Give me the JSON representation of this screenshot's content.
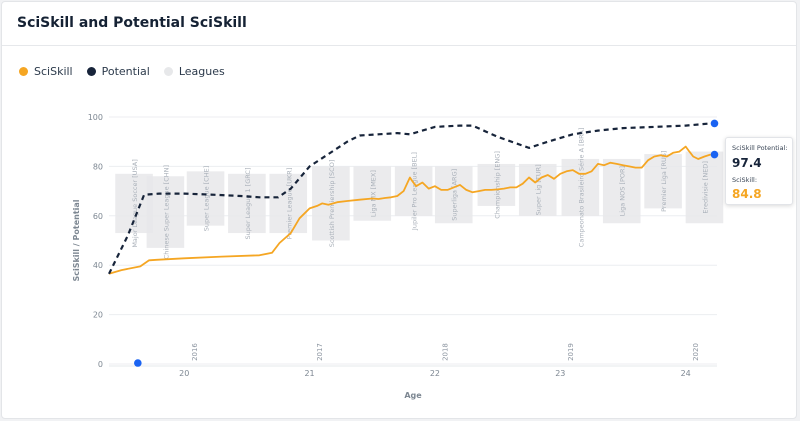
{
  "title": "SciSkill and Potential SciSkill",
  "legend": [
    {
      "label": "SciSkill",
      "color": "#f5a623"
    },
    {
      "label": "Potential",
      "color": "#17243a"
    },
    {
      "label": "Leagues",
      "color": "#e7e8ea"
    }
  ],
  "tooltip": {
    "potential_label": "SciSkill Potential:",
    "potential_value": "97.4",
    "sciskill_label": "SciSkill:",
    "sciskill_value": "84.8"
  },
  "chart_data": {
    "type": "line",
    "title": "SciSkill and Potential SciSkill",
    "xlabel": "Age",
    "ylabel": "SciSkill / Potential",
    "xlim": [
      19.4,
      24.25
    ],
    "ylim": [
      0,
      100
    ],
    "x_ticks": [
      20,
      21,
      22,
      23,
      24
    ],
    "y_ticks": [
      0,
      20,
      40,
      60,
      80,
      100
    ],
    "year_ticks": [
      {
        "label": "2016",
        "x": 20.1
      },
      {
        "label": "2017",
        "x": 21.1
      },
      {
        "label": "2018",
        "x": 22.1
      },
      {
        "label": "2019",
        "x": 23.1
      },
      {
        "label": "2020",
        "x": 24.1
      }
    ],
    "leagues": [
      {
        "name": "Major League Soccer [USA]",
        "x0": 19.45,
        "x1": 19.75,
        "y0": 53,
        "y1": 77
      },
      {
        "name": "Chinese Super League [CHN]",
        "x0": 19.7,
        "x1": 20.0,
        "y0": 47,
        "y1": 76
      },
      {
        "name": "Super League [CHE]",
        "x0": 20.02,
        "x1": 20.32,
        "y0": 56,
        "y1": 78
      },
      {
        "name": "Super League 1 [GRC]",
        "x0": 20.35,
        "x1": 20.65,
        "y0": 53,
        "y1": 77
      },
      {
        "name": "Premier League [UKR]",
        "x0": 20.68,
        "x1": 20.98,
        "y0": 53,
        "y1": 77
      },
      {
        "name": "Scottish Premiership [SCO]",
        "x0": 21.02,
        "x1": 21.32,
        "y0": 50,
        "y1": 80
      },
      {
        "name": "Liga MX [MEX]",
        "x0": 21.35,
        "x1": 21.65,
        "y0": 58,
        "y1": 80
      },
      {
        "name": "Jupiler Pro League [BEL]",
        "x0": 21.68,
        "x1": 21.98,
        "y0": 60,
        "y1": 80
      },
      {
        "name": "Superliga [ARG]",
        "x0": 22.0,
        "x1": 22.3,
        "y0": 57,
        "y1": 80
      },
      {
        "name": "Championship [ENG]",
        "x0": 22.34,
        "x1": 22.64,
        "y0": 64,
        "y1": 81
      },
      {
        "name": "Super Lig [TUR]",
        "x0": 22.67,
        "x1": 22.97,
        "y0": 60,
        "y1": 81
      },
      {
        "name": "Campeonato Brasileiro Série A [BRA]",
        "x0": 23.01,
        "x1": 23.31,
        "y0": 60,
        "y1": 83
      },
      {
        "name": "Liga NOS [POR]",
        "x0": 23.34,
        "x1": 23.64,
        "y0": 57,
        "y1": 83
      },
      {
        "name": "Premier Liga [RUS]",
        "x0": 23.67,
        "x1": 23.97,
        "y0": 63,
        "y1": 85
      },
      {
        "name": "Eredivisie [NED]",
        "x0": 24.0,
        "x1": 24.3,
        "y0": 57,
        "y1": 86
      }
    ],
    "series": [
      {
        "name": "SciSkill",
        "color": "#f5a623",
        "style": "solid",
        "x": [
          19.4,
          19.5,
          19.65,
          19.72,
          19.78,
          20.0,
          20.3,
          20.6,
          20.7,
          20.76,
          20.85,
          20.92,
          20.96,
          21.0,
          21.06,
          21.1,
          21.15,
          21.22,
          21.3,
          21.4,
          21.5,
          21.55,
          21.6,
          21.65,
          21.7,
          21.75,
          21.8,
          21.82,
          21.85,
          21.9,
          21.95,
          22.0,
          22.05,
          22.1,
          22.15,
          22.2,
          22.25,
          22.3,
          22.35,
          22.4,
          22.45,
          22.5,
          22.55,
          22.6,
          22.65,
          22.7,
          22.75,
          22.8,
          22.85,
          22.9,
          22.95,
          23.0,
          23.05,
          23.1,
          23.15,
          23.2,
          23.25,
          23.3,
          23.35,
          23.4,
          23.45,
          23.5,
          23.55,
          23.6,
          23.65,
          23.7,
          23.75,
          23.8,
          23.85,
          23.9,
          23.95,
          24.0,
          24.03,
          24.06,
          24.1,
          24.15,
          24.2
        ],
        "values": [
          36.5,
          38,
          39.5,
          42,
          42.2,
          42.8,
          43.5,
          44,
          45,
          49,
          53,
          59,
          61,
          63,
          64,
          65,
          64.5,
          65.5,
          66,
          66.5,
          67,
          66.8,
          67.2,
          67.5,
          68,
          70,
          75.5,
          74,
          72,
          73.5,
          71,
          72,
          70.5,
          70.5,
          71.5,
          72.5,
          70.5,
          69.5,
          70,
          70.5,
          70.5,
          70.7,
          71,
          71.5,
          71.5,
          73,
          75.5,
          73.5,
          75.5,
          76.5,
          75,
          77,
          78,
          78.5,
          77,
          77,
          78,
          81,
          80.5,
          81.5,
          81,
          80.5,
          80,
          79.5,
          79.5,
          82.5,
          84,
          84.5,
          84,
          85.5,
          86,
          88,
          86,
          84,
          83,
          84,
          84.8
        ]
      },
      {
        "name": "Potential",
        "color": "#17243a",
        "style": "dashed",
        "x": [
          19.4,
          19.55,
          19.68,
          19.8,
          20.0,
          20.25,
          20.45,
          20.6,
          20.75,
          20.85,
          21.0,
          21.15,
          21.3,
          21.4,
          21.55,
          21.7,
          21.8,
          22.0,
          22.2,
          22.3,
          22.5,
          22.75,
          22.9,
          23.1,
          23.3,
          23.5,
          23.75,
          24.0,
          24.2
        ],
        "values": [
          36.5,
          52,
          68.5,
          69,
          69,
          68.5,
          68,
          67.5,
          67.5,
          71,
          80,
          85,
          90,
          92.5,
          93,
          93.5,
          93,
          96,
          96.5,
          96.5,
          92,
          87.5,
          90,
          93,
          94.5,
          95.5,
          96,
          96.5,
          97.4
        ]
      }
    ],
    "markers": [
      {
        "series": "Potential",
        "x": 24.23,
        "y": 97.4,
        "color": "#1a63f2"
      },
      {
        "series": "SciSkill",
        "x": 24.23,
        "y": 84.8,
        "color": "#1a63f2"
      },
      {
        "x": 19.63,
        "y": 0.4,
        "color": "#1a63f2"
      }
    ]
  }
}
